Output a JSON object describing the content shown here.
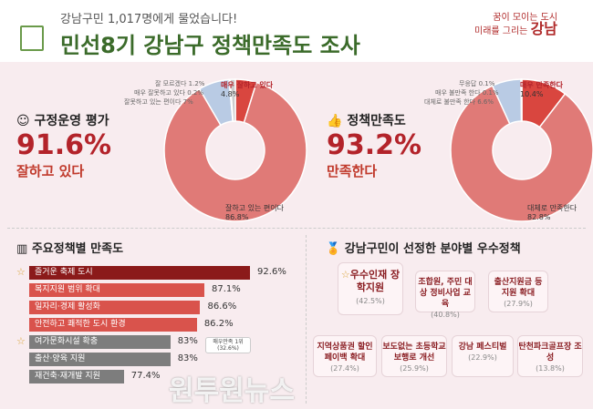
{
  "header": {
    "subtitle": "강남구민 1,017명에게 물었습니다!",
    "title": "민선8기 강남구 정책만족도 조사",
    "logo_line1": "꿈이 모이는 도시",
    "logo_line2": "미래를 그리는",
    "logo_brand": "강남"
  },
  "kpi_left": {
    "label": "구정운영 평가",
    "value": "91.6%",
    "sub": "잘하고 있다"
  },
  "kpi_right": {
    "label": "정책만족도",
    "value": "93.2%",
    "sub": "만족한다"
  },
  "colors": {
    "dark": "#d9463f",
    "main": "#e07a77",
    "blue": "#b9cbe4",
    "grey": "#ccc"
  },
  "chart_data": [
    {
      "type": "pie",
      "title": "구정운영 평가",
      "slices": [
        {
          "label": "매우 잘하고 있다",
          "value": 4.8,
          "text": "4.8%"
        },
        {
          "label": "잘하고 있는 편이다",
          "value": 86.8,
          "text": "86.8%"
        },
        {
          "label": "잘못하고 있는 편이다",
          "value": 7.0,
          "text": "7%"
        },
        {
          "label": "매우 잘못하고 있다",
          "value": 0.2,
          "text": "0.2%"
        },
        {
          "label": "잘 모르겠다",
          "value": 1.2,
          "text": "1.2%"
        }
      ]
    },
    {
      "type": "pie",
      "title": "정책만족도",
      "slices": [
        {
          "label": "매우 만족한다",
          "value": 10.4,
          "text": "10.4%"
        },
        {
          "label": "대체로 만족한다",
          "value": 82.8,
          "text": "82.8%"
        },
        {
          "label": "대체로 불만족 한다",
          "value": 6.6,
          "text": "6.6%"
        },
        {
          "label": "매우 불만족 한다",
          "value": 0.1,
          "text": "0.1%"
        },
        {
          "label": "무응답",
          "value": 0.1,
          "text": "0.1%"
        }
      ]
    },
    {
      "type": "bar",
      "title": "주요정책별 만족도",
      "categories": [
        "즐거운 축제 도시",
        "복지지원 범위 확대",
        "일자리·경제 활성화",
        "안전하고 쾌적한 도시 환경",
        "여가문화시설 확충",
        "출산·양육 지원",
        "재건축·재개발 지원"
      ],
      "values": [
        92.6,
        87.1,
        86.6,
        86.2,
        83,
        83,
        77.4
      ],
      "labels": [
        "92.6%",
        "87.1%",
        "86.6%",
        "86.2%",
        "83%",
        "83%",
        "77.4%"
      ],
      "callout": "매우만족 1위 (32.6%)"
    }
  ],
  "ranking": {
    "title": "강남구민이 선정한 분야별 우수정책",
    "items": [
      {
        "name": "우수인재 장학지원",
        "pct": "(42.5%)"
      },
      {
        "name": "조합원, 주민 대상 정비사업 교육",
        "pct": "(40.8%)"
      },
      {
        "name": "출산지원금 등 지원 확대",
        "pct": "(27.9%)"
      },
      {
        "name": "지역상품권 할인 페이백 확대",
        "pct": "(27.4%)"
      },
      {
        "name": "보도없는 초등학교 보행로 개선",
        "pct": "(25.9%)"
      },
      {
        "name": "강남 페스티벌",
        "pct": "(22.9%)"
      },
      {
        "name": "탄천파크골프장 조성",
        "pct": "(13.8%)"
      }
    ]
  },
  "watermark": "원투원뉴스"
}
